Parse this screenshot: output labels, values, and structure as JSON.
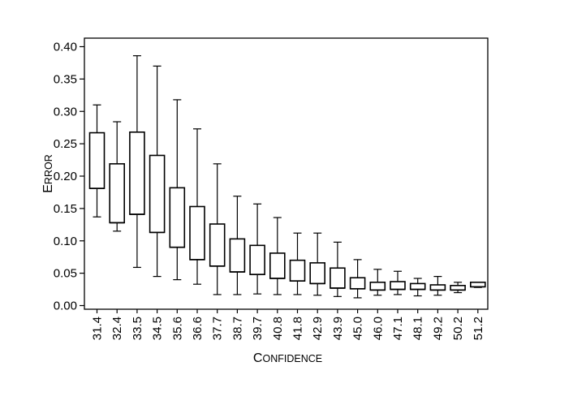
{
  "chart_data": {
    "type": "box",
    "xlabel": "Confidence",
    "ylabel": "Error",
    "ylim": [
      0,
      0.41
    ],
    "yticks": [
      "0.00",
      "0.05",
      "0.10",
      "0.15",
      "0.20",
      "0.25",
      "0.30",
      "0.35",
      "0.40"
    ],
    "categories": [
      "31.4",
      "32.4",
      "33.5",
      "34.5",
      "35.6",
      "36.6",
      "37.7",
      "38.7",
      "39.7",
      "40.8",
      "41.8",
      "42.9",
      "43.9",
      "45.0",
      "46.0",
      "47.1",
      "48.1",
      "49.2",
      "50.2",
      "51.2"
    ],
    "boxes": [
      {
        "min": 0.137,
        "q1": 0.181,
        "median": 0.181,
        "q3": 0.267,
        "max": 0.31
      },
      {
        "min": 0.115,
        "q1": 0.128,
        "median": 0.128,
        "q3": 0.219,
        "max": 0.284
      },
      {
        "min": 0.059,
        "q1": 0.141,
        "median": 0.141,
        "q3": 0.268,
        "max": 0.386
      },
      {
        "min": 0.045,
        "q1": 0.113,
        "median": 0.113,
        "q3": 0.232,
        "max": 0.37
      },
      {
        "min": 0.04,
        "q1": 0.09,
        "median": 0.09,
        "q3": 0.182,
        "max": 0.318
      },
      {
        "min": 0.033,
        "q1": 0.071,
        "median": 0.071,
        "q3": 0.153,
        "max": 0.273
      },
      {
        "min": 0.017,
        "q1": 0.061,
        "median": 0.061,
        "q3": 0.126,
        "max": 0.219
      },
      {
        "min": 0.017,
        "q1": 0.052,
        "median": 0.052,
        "q3": 0.103,
        "max": 0.169
      },
      {
        "min": 0.018,
        "q1": 0.048,
        "median": 0.048,
        "q3": 0.093,
        "max": 0.157
      },
      {
        "min": 0.017,
        "q1": 0.042,
        "median": 0.042,
        "q3": 0.081,
        "max": 0.136
      },
      {
        "min": 0.017,
        "q1": 0.038,
        "median": 0.038,
        "q3": 0.07,
        "max": 0.112
      },
      {
        "min": 0.016,
        "q1": 0.034,
        "median": 0.034,
        "q3": 0.066,
        "max": 0.112
      },
      {
        "min": 0.014,
        "q1": 0.027,
        "median": 0.027,
        "q3": 0.058,
        "max": 0.098
      },
      {
        "min": 0.012,
        "q1": 0.026,
        "median": 0.026,
        "q3": 0.043,
        "max": 0.071
      },
      {
        "min": 0.016,
        "q1": 0.024,
        "median": 0.024,
        "q3": 0.036,
        "max": 0.056
      },
      {
        "min": 0.017,
        "q1": 0.025,
        "median": 0.025,
        "q3": 0.037,
        "max": 0.053
      },
      {
        "min": 0.015,
        "q1": 0.025,
        "median": 0.025,
        "q3": 0.034,
        "max": 0.042
      },
      {
        "min": 0.016,
        "q1": 0.024,
        "median": 0.024,
        "q3": 0.032,
        "max": 0.045
      },
      {
        "min": 0.02,
        "q1": 0.024,
        "median": 0.024,
        "q3": 0.031,
        "max": 0.036
      },
      {
        "min": 0.028,
        "q1": 0.029,
        "median": 0.029,
        "q3": 0.036,
        "max": 0.036
      }
    ],
    "grid": false,
    "colors": {
      "box_fill": "#ffffff",
      "stroke": "#000000"
    }
  }
}
